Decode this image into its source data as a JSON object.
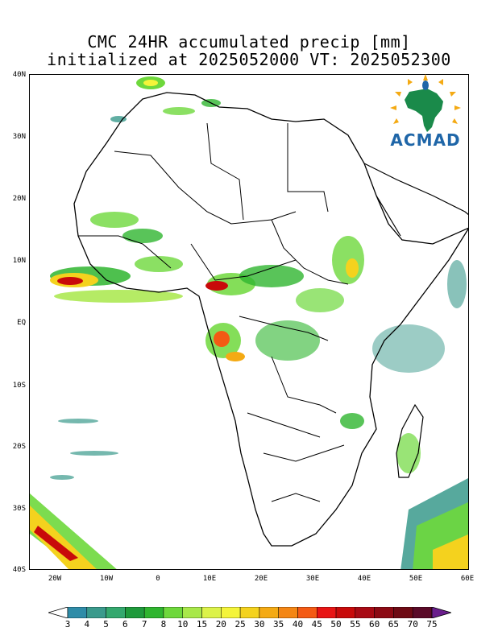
{
  "title_line1": "CMC 24HR accumulated precip [mm]",
  "title_line2": "initialized at 2025052000 VT: 2025052300",
  "logo_text": "ACMAD",
  "lat_labels": [
    "40N",
    "30N",
    "20N",
    "10N",
    "EQ",
    "10S",
    "20S",
    "30S",
    "40S"
  ],
  "lon_labels": [
    "20W",
    "10W",
    "0",
    "10E",
    "20E",
    "30E",
    "40E",
    "50E",
    "60E"
  ],
  "map_extent": {
    "lon_min": -25,
    "lon_max": 60,
    "lat_min": -40,
    "lat_max": 40
  },
  "colorbar": {
    "labels": [
      "3",
      "4",
      "5",
      "6",
      "7",
      "8",
      "10",
      "15",
      "20",
      "25",
      "30",
      "35",
      "40",
      "45",
      "50",
      "55",
      "60",
      "65",
      "70",
      "75"
    ],
    "colors": [
      "#ffffff",
      "#2f8ca8",
      "#3a9a8c",
      "#34a86e",
      "#1f9a3c",
      "#2fb52f",
      "#6ed83c",
      "#a8e84a",
      "#dcf24a",
      "#f4f43a",
      "#f4d21e",
      "#f4aa14",
      "#f48614",
      "#f45a14",
      "#e81414",
      "#c80a0a",
      "#a80a14",
      "#8c0a14",
      "#6e0a14",
      "#5a0a28",
      "#6a1e8c"
    ]
  }
}
